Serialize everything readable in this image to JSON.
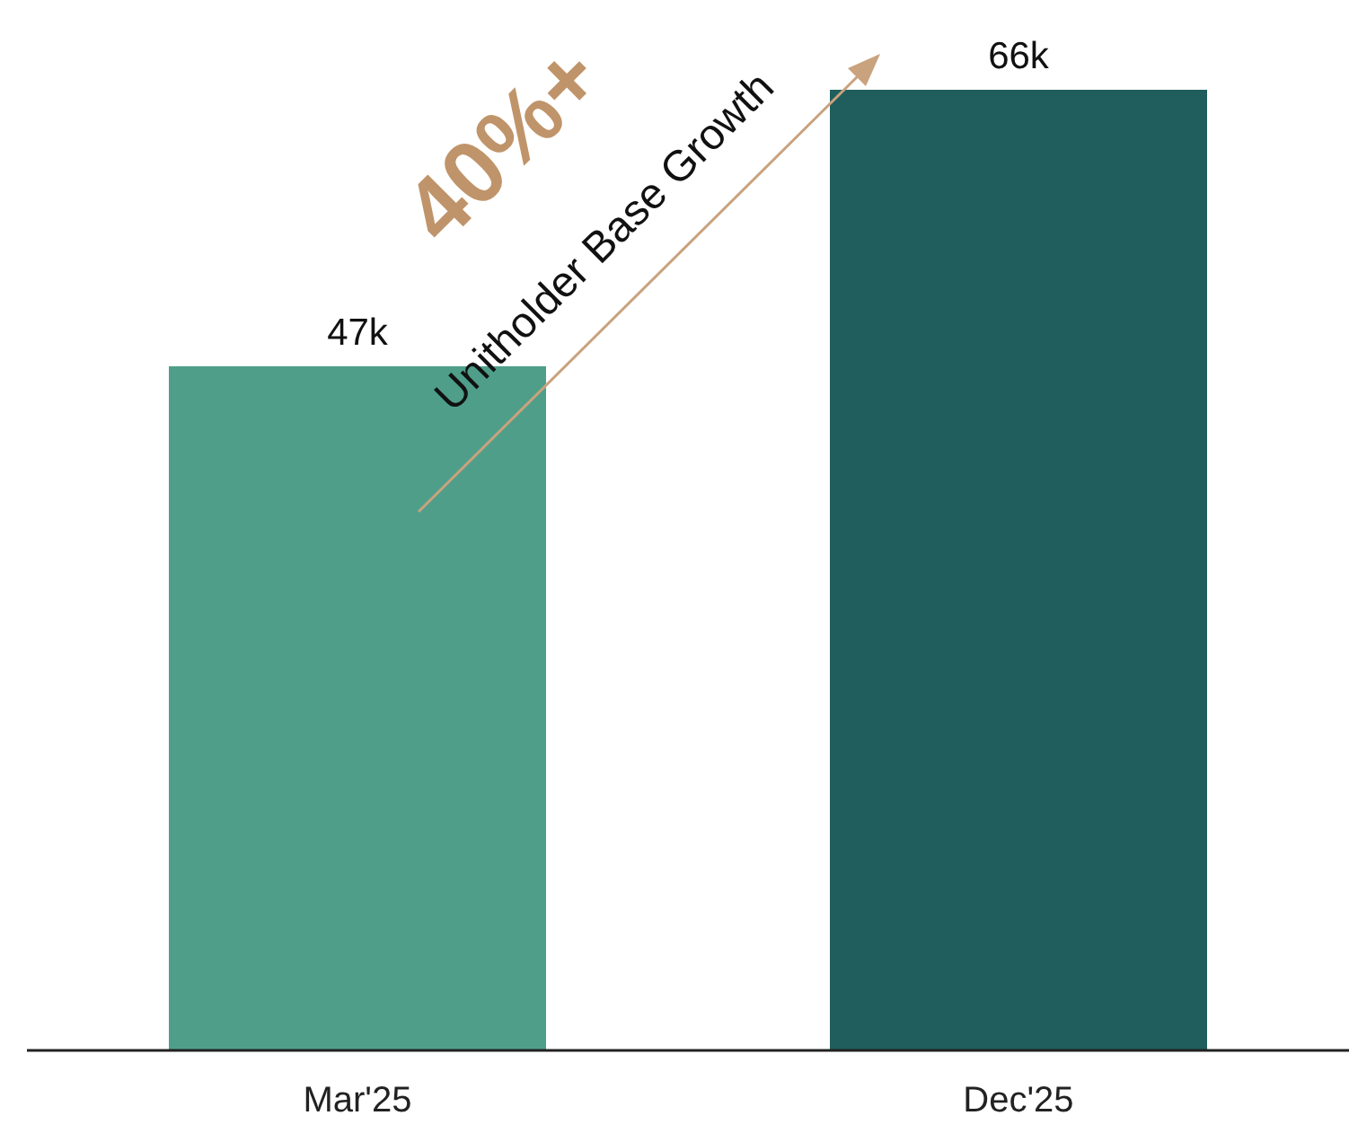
{
  "chart_data": {
    "type": "bar",
    "categories": [
      "Mar'25",
      "Dec'25"
    ],
    "values": [
      47,
      66
    ],
    "colors": [
      "#4f9e8a",
      "#1f5e5c"
    ],
    "value_labels": [
      "47k",
      "66k"
    ],
    "tick_labels": "x",
    "annotations": [
      "40%+",
      "Unitholder Base Growth"
    ]
  }
}
